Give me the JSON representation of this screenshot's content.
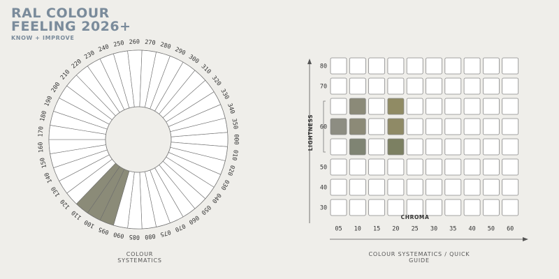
{
  "header": {
    "title_line1": "RAL COLOUR",
    "title_line2": "FEELING 2026+",
    "subtitle": "KNOW + IMPROVE"
  },
  "wheel": {
    "hue_labels": [
      "000",
      "010",
      "020",
      "030",
      "040",
      "050",
      "060",
      "070",
      "075",
      "080",
      "085",
      "090",
      "095",
      "100",
      "110",
      "120",
      "130",
      "140",
      "150",
      "160",
      "170",
      "180",
      "190",
      "200",
      "210",
      "220",
      "230",
      "240",
      "250",
      "260",
      "270",
      "280",
      "290",
      "300",
      "310",
      "320",
      "330",
      "340",
      "350"
    ],
    "highlighted_hues": [
      "095",
      "100",
      "110"
    ],
    "highlight_color": "#8b8b78",
    "caption": "COLOUR SYSTEMATICS"
  },
  "quick_guide": {
    "y_axis_label": "LIGHTNESS",
    "x_axis_label": "CHROMA",
    "lightness_labels": [
      "80",
      "70",
      "60",
      "50",
      "40",
      "30"
    ],
    "chroma_labels": [
      "05",
      "10",
      "15",
      "20",
      "25",
      "30",
      "35",
      "40",
      "50",
      "60"
    ],
    "filled_cells": [
      {
        "lightness": 65,
        "chroma": "10",
        "color": "#8b8a78"
      },
      {
        "lightness": 65,
        "chroma": "20",
        "color": "#908b64"
      },
      {
        "lightness": 60,
        "chroma": "05",
        "color": "#8d8d82"
      },
      {
        "lightness": 60,
        "chroma": "10",
        "color": "#8c8a77"
      },
      {
        "lightness": 60,
        "chroma": "20",
        "color": "#8f8a66"
      },
      {
        "lightness": 55,
        "chroma": "10",
        "color": "#7f8473"
      },
      {
        "lightness": 55,
        "chroma": "20",
        "color": "#7c8062"
      }
    ],
    "caption": "COLOUR SYSTEMATICS / QUICK GUIDE"
  }
}
